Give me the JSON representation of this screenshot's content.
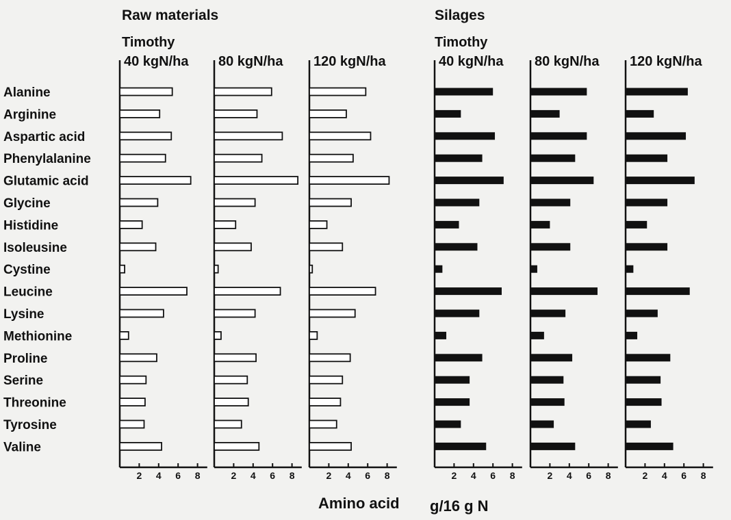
{
  "titles": {
    "raw": "Raw materials",
    "silages": "Silages"
  },
  "species": {
    "raw": "Timothy",
    "silages": "Timothy"
  },
  "xlabel": "Amino acid",
  "unit": "g/16 g N",
  "colors": {
    "raw_fill": "#ffffff",
    "silage_fill": "#111111",
    "axis": "#111111"
  },
  "chart_data": {
    "type": "bar",
    "orientation": "horizontal",
    "xlabel": "Amino acid  g/16 g N",
    "xlim": [
      0,
      9
    ],
    "xticks": [
      2,
      4,
      6,
      8
    ],
    "categories": [
      "Alanine",
      "Arginine",
      "Aspartic acid",
      "Phenylalanine",
      "Glutamic acid",
      "Glycine",
      "Histidine",
      "Isoleusine",
      "Cystine",
      "Leucine",
      "Lysine",
      "Methionine",
      "Proline",
      "Serine",
      "Threonine",
      "Tyrosine",
      "Valine"
    ],
    "panels": [
      {
        "group": "Raw materials",
        "label": "40 kgN/ha",
        "values": [
          5.4,
          4.1,
          5.3,
          4.7,
          7.3,
          3.9,
          2.3,
          3.7,
          0.5,
          6.9,
          4.5,
          0.9,
          3.8,
          2.7,
          2.6,
          2.5,
          4.3
        ]
      },
      {
        "group": "Raw materials",
        "label": "80 kgN/ha",
        "values": [
          5.9,
          4.4,
          7.0,
          4.9,
          8.6,
          4.2,
          2.2,
          3.8,
          0.4,
          6.8,
          4.2,
          0.7,
          4.3,
          3.4,
          3.5,
          2.8,
          4.6
        ]
      },
      {
        "group": "Raw materials",
        "label": "120 kgN/ha",
        "values": [
          5.8,
          3.8,
          6.3,
          4.5,
          8.2,
          4.3,
          1.8,
          3.4,
          0.3,
          6.8,
          4.7,
          0.8,
          4.2,
          3.4,
          3.2,
          2.8,
          4.3
        ]
      },
      {
        "group": "Silages",
        "label": "40 kgN/ha",
        "values": [
          6.0,
          2.7,
          6.2,
          4.9,
          7.1,
          4.6,
          2.5,
          4.4,
          0.8,
          6.9,
          4.6,
          1.2,
          4.9,
          3.6,
          3.6,
          2.7,
          5.3
        ]
      },
      {
        "group": "Silages",
        "label": "80 kgN/ha",
        "values": [
          5.8,
          3.0,
          5.8,
          4.6,
          6.5,
          4.1,
          2.0,
          4.1,
          0.7,
          6.9,
          3.6,
          1.4,
          4.3,
          3.4,
          3.5,
          2.4,
          4.6
        ]
      },
      {
        "group": "Silages",
        "label": "120 kgN/ha",
        "values": [
          6.4,
          2.9,
          6.2,
          4.3,
          7.1,
          4.3,
          2.2,
          4.3,
          0.8,
          6.6,
          3.3,
          1.2,
          4.6,
          3.6,
          3.7,
          2.6,
          4.9
        ]
      }
    ]
  }
}
